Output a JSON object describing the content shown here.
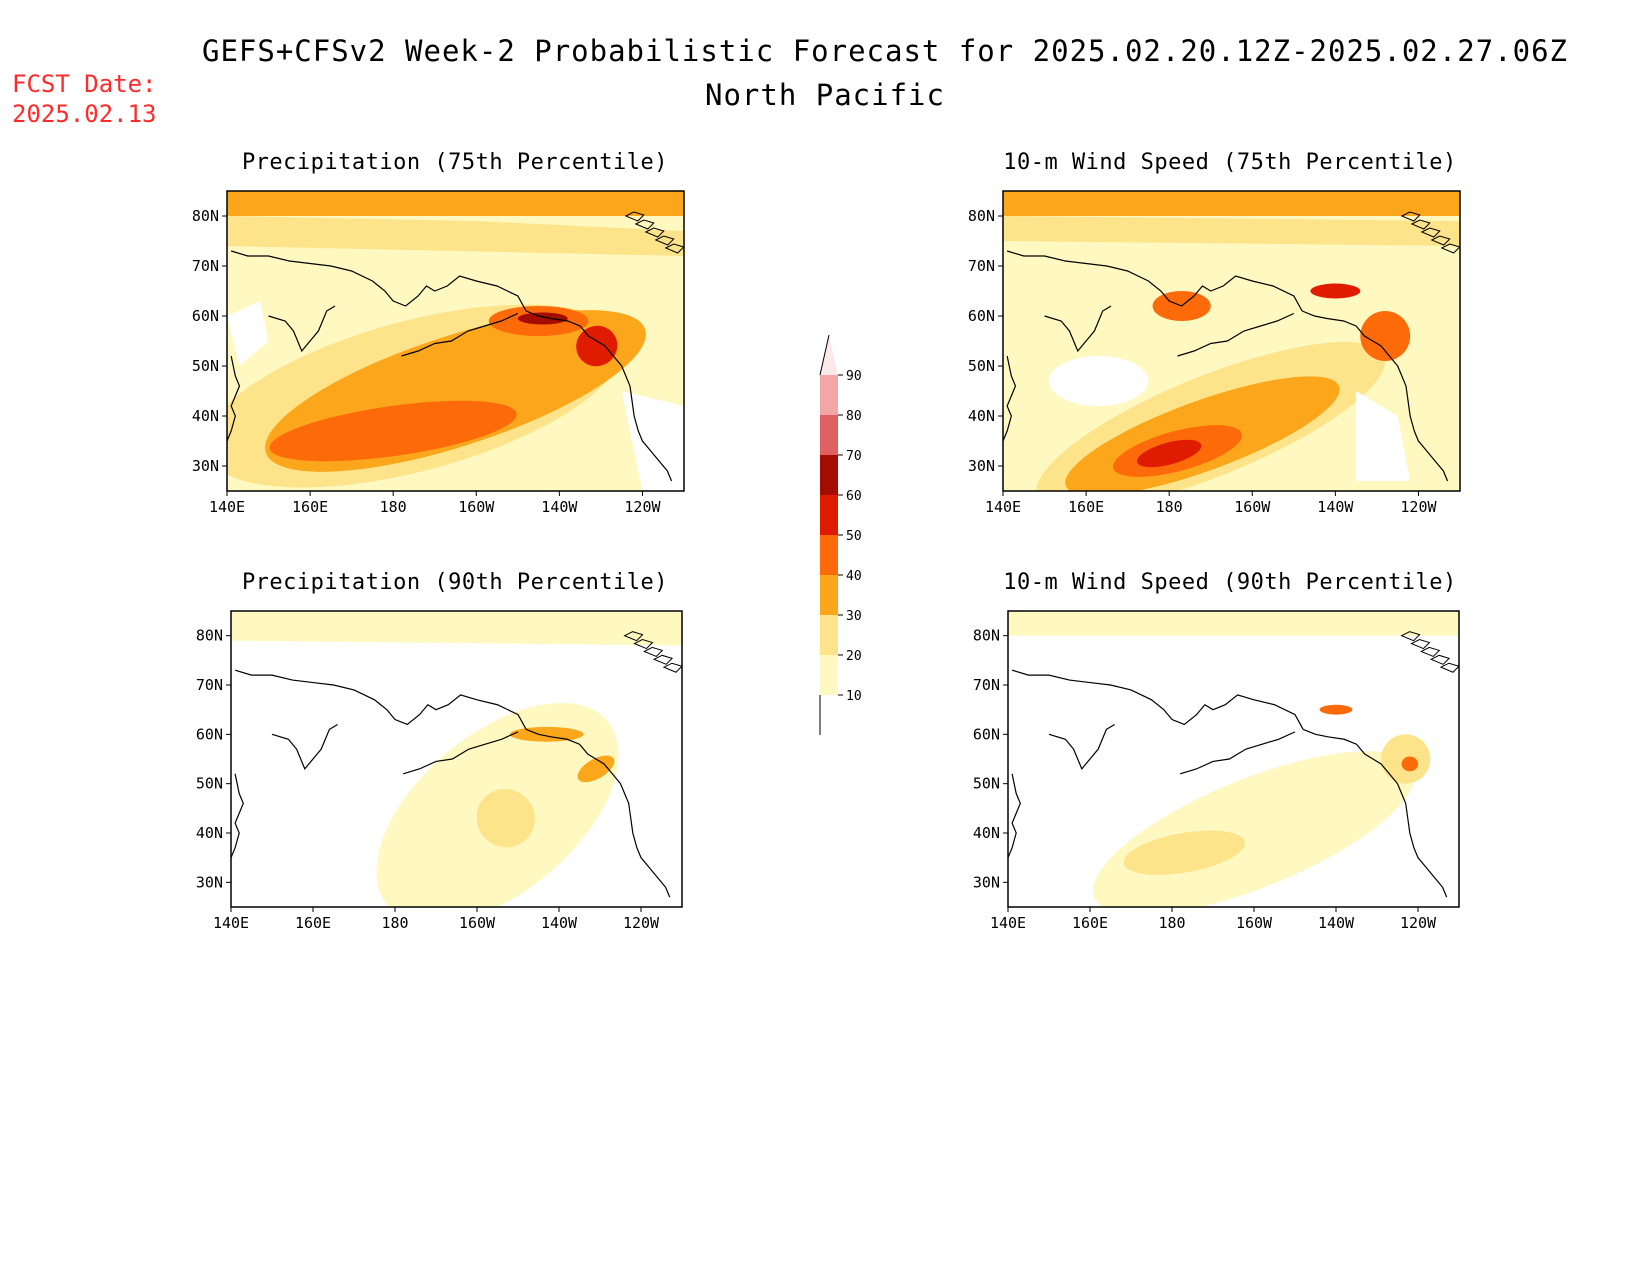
{
  "title": "GEFS+CFSv2 Week-2 Probabilistic Forecast for 2025.02.20.12Z-2025.02.27.06Z",
  "subtitle": "North Pacific",
  "fcst_date_label": "FCST Date:",
  "fcst_date_value": "2025.02.13",
  "lat_labels": [
    "80N",
    "70N",
    "60N",
    "50N",
    "40N",
    "30N"
  ],
  "lon_labels": [
    "140E",
    "160E",
    "180",
    "160W",
    "140W",
    "120W"
  ],
  "colorbar": {
    "levels": [
      "10",
      "20",
      "30",
      "40",
      "50",
      "60",
      "70",
      "80",
      "90"
    ],
    "colors": [
      "#fff8c0",
      "#fde48a",
      "#fca61c",
      "#fc6a0a",
      "#e01c00",
      "#a50c00",
      "#de6060",
      "#f2a6a6",
      "#fde8ea"
    ]
  },
  "panels": [
    {
      "id": "precip-75",
      "title": "Precipitation (75th Percentile)"
    },
    {
      "id": "wind-75",
      "title": "10-m Wind Speed (75th Percentile)"
    },
    {
      "id": "precip-90",
      "title": "Precipitation (90th Percentile)"
    },
    {
      "id": "wind-90",
      "title": "10-m Wind Speed (90th Percentile)"
    }
  ]
}
